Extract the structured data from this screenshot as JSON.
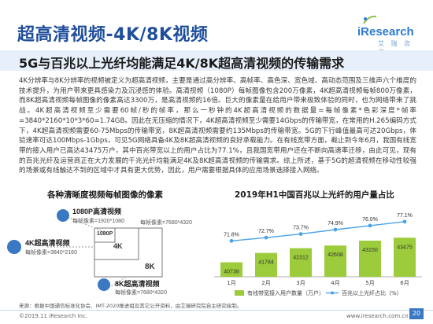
{
  "header": {
    "title": "超高清视频-4K/8K视频",
    "subtitle": "5G与百兆以上光纤均能满足4K/8K超高清视频的传输需求",
    "logo_text": "iResearch",
    "logo_sub": "艾 瑞 咨 询"
  },
  "paragraph": "4K分辨率与8K分辨率的视频被定义为超高清视频，主要是通过高分辨率、高帧率、高色深、宽色域、高动态范围及三维声六个维度的技术提升，为用户带来更具感染力及沉浸感的体验。高清视频（1080P）每帧图像包含200万像素，4K超高清视频每帧800万像素，而8K超高清视频每帧图像的像素高达3300万，是高清视频的16倍。巨大的像素量在给用户带来极致体验的同时，也为网络带来了挑战。4K超高清视频至少需要60帧/秒的帧率，那么一秒钟的4K超高清视频的数据量=每帧像素*色彩深度*帧率=3840*2160*10*3*60=1.74GB。因此在无压缩的情况下，4K超高清视频至少需要14Gbps的传输带宽，在常用的H.265编码方式下，4K超高清视频需要60-75Mbps的传输带宽，8K超高清视频需要约135Mbps的传输带宽。5G的下行峰值最高可达20Gbps，体验速率可达100Mbps-1Gbps，可见5G网络具备4K及8K超高清视频的良好承载能力。在有线宽带方面，截止到今年6月，我国有线宽带的接入用户已高达43475万户，其中百兆带宽以上的用户占比为77.1%，且我国宽带用户还在不断向高速率迁移，由此可见，现有的百兆光纤及运营商正在大力发展的千兆光纤均能满足4K及8K超高清视频的传输需求。综上所述，基于5G的超清视频在移动性较强的场景或有线触达不到的区域中才具有更大优势，因此，用户需要根据具体的应用场景选择接入网络。",
  "left_panel": {
    "title": "各种清晰度视频每帧图像的像素",
    "p1080_name": "1080P高清视频",
    "p1080_px": "每帧像素=1920*1080",
    "k4_name": "4K超高清视频",
    "k4_px": "每帧像素=3840*2160",
    "k8_name": "8K超高清视频",
    "k8_px": "每帧像素=7680*4320",
    "top_px": "每帧像素=7680*4320",
    "box_1080": "1080P",
    "box_4k": "4K",
    "box_8k": "8K"
  },
  "right_panel": {
    "title": "2019年H1中国百兆以上光纤的用户量占比"
  },
  "chart_data": {
    "type": "bar",
    "categories": [
      "1月",
      "2月",
      "3月",
      "4月",
      "5月",
      "6月"
    ],
    "series": [
      {
        "name": "有线带宽接入用户数量（万户）",
        "kind": "bar",
        "values": [
          40738,
          41784,
          42312,
          42608,
          43150,
          43475
        ],
        "color": "#9ccc3c"
      },
      {
        "name": "百兆以上光纤占比（%）",
        "kind": "line",
        "values": [
          71.8,
          72.7,
          73.7,
          74.9,
          76.0,
          77.1
        ],
        "labels": [
          "71.8%",
          "72.7%",
          "73.7%",
          "74.9%",
          "76.0%",
          "77.1%"
        ],
        "color": "#4aa3e8"
      }
    ],
    "title": "2019年H1中国百兆以上光纤的用户量占比",
    "legend_position": "bottom"
  },
  "footer": {
    "source": "来源：根据中国通信标准化协会、IMT-2020推进组及其它公开资料，由艾瑞研究院自主研究绘制。",
    "copyright": "©2019.11 iResearch Inc.",
    "website": "www.iresearch.com.cn",
    "page": "20"
  },
  "colors": {
    "title_blue": "#1f4e9b",
    "bar_green": "#9ccc3c",
    "line_blue": "#4aa3e8",
    "subtitle_bg": "#e7f0fa"
  }
}
